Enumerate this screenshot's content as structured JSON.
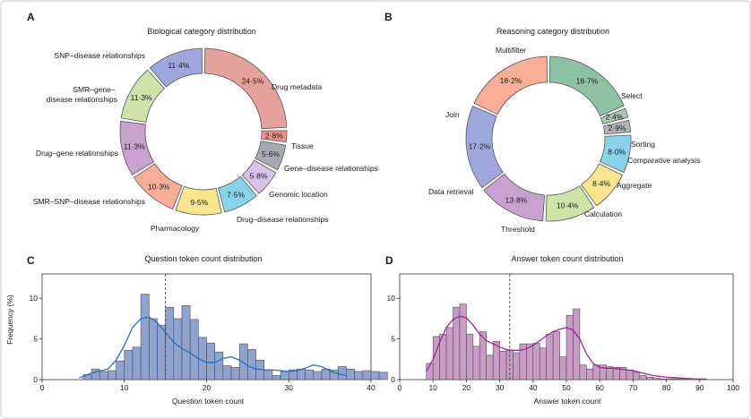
{
  "panels": {
    "A": "A",
    "B": "B",
    "C": "C",
    "D": "D"
  },
  "colors": {
    "frame": "#c9c9c9",
    "bar_c": "#8ea3cf",
    "kde_c": "#2c6fbe",
    "bar_d": "#c89cc4",
    "kde_d": "#9b2b93"
  },
  "chart_data": [
    {
      "type": "pie",
      "variant": "donut",
      "title": "Biological category distribution",
      "slices": [
        {
          "label": "Drug metadata",
          "value": 24.5,
          "pct_text": "24·5%",
          "color": "#e5a19b"
        },
        {
          "label": "Tissue",
          "value": 2.8,
          "pct_text": "2·8%",
          "color": "#f0918c"
        },
        {
          "label": "Gene–disease relationships",
          "value": 5.6,
          "pct_text": "5·6%",
          "color": "#a7aab3"
        },
        {
          "label": "Genomic location",
          "value": 5.8,
          "pct_text": "5·8%",
          "color": "#d7c3e6"
        },
        {
          "label": "Drug–disease relationships",
          "value": 7.5,
          "pct_text": "7·5%",
          "color": "#86d3ec"
        },
        {
          "label": "Pharmacology",
          "value": 9.5,
          "pct_text": "9·5%",
          "color": "#f9e68d"
        },
        {
          "label": "SMR–SNP–disease relationships",
          "value": 10.3,
          "pct_text": "10·3%",
          "color": "#f8ad96"
        },
        {
          "label": "Drug–gene relationships",
          "value": 11.3,
          "pct_text": "11·3%",
          "color": "#c7a2ce"
        },
        {
          "label": "SMR–gene–disease relationships",
          "value": 11.3,
          "pct_text": "11·3%",
          "color": "#cfe3a8"
        },
        {
          "label": "SNP–disease relationships",
          "value": 11.4,
          "pct_text": "11·4%",
          "color": "#9fa8dd"
        }
      ]
    },
    {
      "type": "pie",
      "variant": "donut",
      "title": "Reasoning category distribution",
      "slices": [
        {
          "label": "Select",
          "value": 18.7,
          "pct_text": "18·7%",
          "color": "#8cc1a2"
        },
        {
          "label": "Sorting",
          "value": 2.4,
          "pct_text": "2·4%",
          "color": "#a8c9b0"
        },
        {
          "label": "Comparative analysis",
          "value": 2.9,
          "pct_text": "2·9%",
          "color": "#b3b3b8"
        },
        {
          "label": "Aggregate",
          "value": 8.0,
          "pct_text": "8·0%",
          "color": "#89d3ea"
        },
        {
          "label": "Calculation",
          "value": 8.4,
          "pct_text": "8·4%",
          "color": "#f9e68d"
        },
        {
          "label": "Threshold",
          "value": 10.4,
          "pct_text": "10·4%",
          "color": "#cfe3a8"
        },
        {
          "label": "Data retrieval",
          "value": 13.8,
          "pct_text": "13·8%",
          "color": "#c7a2ce"
        },
        {
          "label": "Join",
          "value": 17.2,
          "pct_text": "17·2%",
          "color": "#9fa8dd"
        },
        {
          "label": "Multifilter",
          "value": 18.2,
          "pct_text": "18·2%",
          "color": "#f8ad96"
        }
      ]
    },
    {
      "type": "bar",
      "variant": "histogram",
      "title": "Question token count distribution",
      "xlabel": "Question token count",
      "ylabel": "Frequency (%)",
      "xlim": [
        0,
        40
      ],
      "ylim": [
        0,
        13
      ],
      "xticks": [
        0,
        10,
        20,
        30,
        40
      ],
      "yticks": [
        0,
        5,
        10
      ],
      "bin_start": 5,
      "bin_width": 1,
      "values": [
        0.6,
        1.3,
        1.0,
        1.1,
        2.3,
        3.6,
        4.0,
        10.5,
        7.5,
        6.7,
        8.9,
        7.5,
        9.1,
        7.4,
        5.2,
        4.5,
        3.4,
        1.7,
        1.5,
        4.4,
        3.7,
        2.4,
        1.2,
        0.5,
        1.0,
        1.2,
        1.3,
        1.2,
        1.0,
        1.3,
        1.2,
        1.6,
        1.3,
        1.0,
        1.1,
        1.0,
        0.9
      ],
      "kde_x": [
        4.5,
        6,
        8,
        9,
        10,
        11,
        12,
        13,
        14,
        15,
        16,
        17,
        18,
        19,
        20,
        21,
        22,
        23,
        24,
        25,
        26,
        27,
        28,
        29,
        30,
        31,
        32,
        33,
        34,
        35,
        36,
        37
      ],
      "kde_y": [
        0.2,
        0.8,
        1.3,
        2.4,
        4.2,
        6.4,
        7.5,
        7.7,
        7.0,
        5.8,
        4.6,
        3.8,
        3.3,
        2.6,
        2.1,
        2.1,
        2.6,
        2.8,
        2.4,
        1.7,
        1.3,
        1.2,
        1.2,
        1.1,
        1.0,
        1.1,
        1.4,
        1.8,
        1.6,
        1.1,
        0.7,
        0.5
      ],
      "mean_line": 15
    },
    {
      "type": "bar",
      "variant": "histogram",
      "title": "Answer token count distribution",
      "xlabel": "Answer token count",
      "ylabel": "",
      "xlim": [
        0,
        100
      ],
      "ylim": [
        0,
        13
      ],
      "xticks": [
        0,
        10,
        20,
        30,
        40,
        50,
        60,
        70,
        80,
        90,
        100
      ],
      "yticks": [
        0,
        5,
        10
      ],
      "bin_start": 8,
      "bin_width": 2,
      "values": [
        2.0,
        5.3,
        5.6,
        6.4,
        8.9,
        9.3,
        5.6,
        4.1,
        5.9,
        3.0,
        4.7,
        3.5,
        3.6,
        3.3,
        4.4,
        4.4,
        4.5,
        3.9,
        5.6,
        5.9,
        2.8,
        7.9,
        8.7,
        1.8,
        1.3,
        1.8,
        1.8,
        1.6,
        1.5,
        1.5,
        1.2,
        0.9,
        0.5,
        0.3,
        0.2,
        0.1,
        0.1,
        0.1,
        0.1,
        0.1,
        0.1,
        0.1
      ],
      "kde_x": [
        8,
        10,
        12,
        14,
        16,
        18,
        20,
        22,
        24,
        26,
        28,
        30,
        32,
        34,
        36,
        38,
        40,
        42,
        44,
        46,
        48,
        50,
        52,
        54,
        56,
        58,
        60,
        62,
        64,
        66,
        68,
        70,
        72,
        74,
        76,
        78,
        80,
        84,
        88,
        92
      ],
      "kde_y": [
        1.0,
        2.5,
        4.6,
        6.4,
        7.4,
        7.8,
        7.6,
        6.7,
        5.6,
        4.8,
        4.4,
        4.0,
        3.7,
        3.6,
        3.6,
        3.8,
        4.2,
        4.8,
        5.4,
        5.9,
        6.2,
        6.4,
        6.1,
        5.0,
        3.2,
        2.0,
        1.5,
        1.4,
        1.4,
        1.3,
        1.2,
        1.1,
        0.9,
        0.7,
        0.5,
        0.4,
        0.3,
        0.2,
        0.1,
        0.05
      ],
      "mean_line": 33
    }
  ]
}
